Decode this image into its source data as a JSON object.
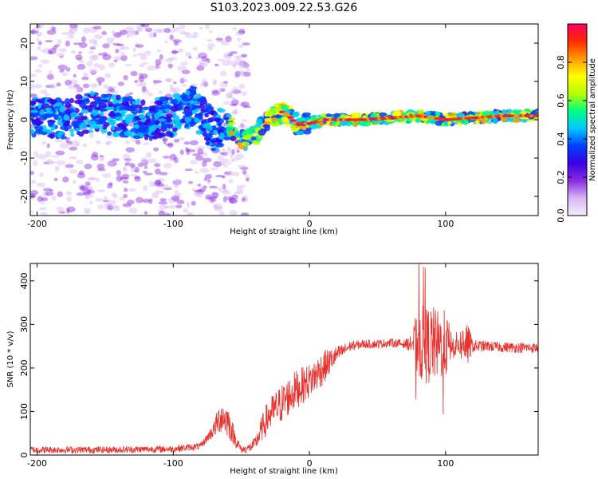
{
  "figure": {
    "title": "S103.2023.009.22.53.G26"
  },
  "chart_data": [
    {
      "type": "heatmap",
      "xlabel": "Height of straight line (km)",
      "ylabel": "Frequency (Hz)",
      "xlim": [
        -205,
        168
      ],
      "ylim": [
        -25,
        25
      ],
      "xticks": [
        -200,
        -100,
        0,
        100
      ],
      "yticks": [
        20,
        10,
        0,
        -10,
        -20
      ],
      "colorbar": {
        "label": "Normalized spectral amplitude",
        "range": [
          0,
          1
        ],
        "ticks": [
          "0.0",
          "0.2",
          "0.4",
          "0.6",
          "0.8"
        ],
        "colors": [
          "#f4eefc",
          "#d7b8f4",
          "#8a2be2",
          "#3b00e6",
          "#0040ff",
          "#00c8ff",
          "#00ff80",
          "#b8ff00",
          "#ffff00",
          "#ff9a00",
          "#ff2a00",
          "#ff0060"
        ]
      },
      "ridge": {
        "x": [
          -200,
          -180,
          -160,
          -140,
          -120,
          -100,
          -85,
          -80,
          -75,
          -70,
          -65,
          -60,
          -55,
          -50,
          -45,
          -40,
          -35,
          -30,
          -25,
          -20,
          -15,
          -10,
          -5,
          0,
          10,
          20,
          40,
          60,
          80,
          100,
          120,
          140,
          168
        ],
        "freq": [
          1,
          0,
          2,
          1,
          0,
          1,
          4,
          1,
          -1,
          -3,
          -2,
          -1,
          -3,
          -5,
          -5,
          -4,
          -2,
          0,
          1,
          2,
          1,
          -1,
          -1,
          -1,
          0,
          0,
          0,
          0.5,
          1,
          0,
          0.5,
          1,
          1
        ]
      }
    },
    {
      "type": "line",
      "xlabel": "Height of straight line (km)",
      "ylabel": "SNR (10 * v/v)",
      "xlim": [
        -205,
        168
      ],
      "ylim": [
        0,
        440
      ],
      "xticks": [
        -200,
        -100,
        0,
        100
      ],
      "yticks": [
        0,
        100,
        200,
        300,
        400
      ],
      "color": "#e8302c",
      "envelope": {
        "x": [
          -205,
          -150,
          -100,
          -80,
          -75,
          -70,
          -65,
          -60,
          -55,
          -50,
          -45,
          -40,
          -35,
          -30,
          -20,
          -10,
          0,
          10,
          20,
          30,
          40,
          50,
          60,
          70,
          75,
          80,
          85,
          90,
          95,
          100,
          105,
          110,
          115,
          120,
          130,
          140,
          150,
          168
        ],
        "mean": [
          12,
          12,
          14,
          20,
          40,
          60,
          90,
          80,
          40,
          12,
          15,
          25,
          60,
          90,
          120,
          150,
          170,
          200,
          230,
          250,
          255,
          255,
          258,
          255,
          255,
          260,
          250,
          255,
          250,
          255,
          250,
          255,
          255,
          250,
          250,
          248,
          247,
          246
        ],
        "noise": [
          8,
          8,
          8,
          8,
          10,
          20,
          40,
          40,
          20,
          8,
          10,
          15,
          30,
          40,
          45,
          45,
          40,
          40,
          20,
          12,
          10,
          10,
          10,
          10,
          20,
          90,
          90,
          90,
          80,
          80,
          30,
          30,
          60,
          15,
          12,
          12,
          12,
          12
        ]
      }
    }
  ]
}
